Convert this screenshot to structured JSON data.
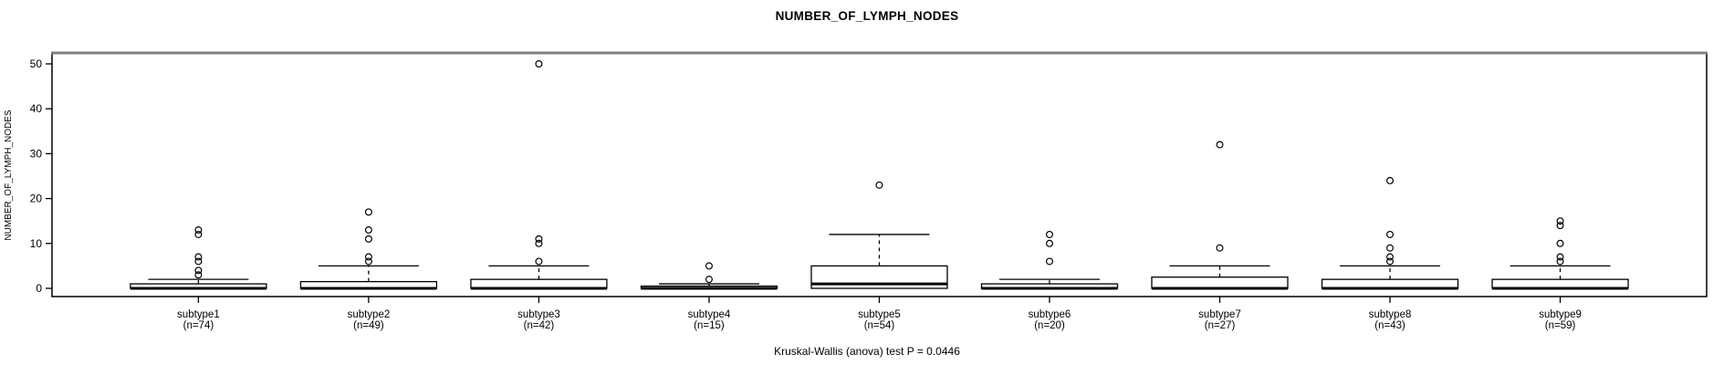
{
  "title": "NUMBER_OF_LYMPH_NODES",
  "y_axis_label": "NUMBER_OF_LYMPH_NODES",
  "caption": "Kruskal-Wallis (anova) test P = 0.0446",
  "chart_data": {
    "type": "boxplot",
    "title": "NUMBER_OF_LYMPH_NODES",
    "ylabel": "NUMBER_OF_LYMPH_NODES",
    "xlabel": "",
    "ylim": [
      0,
      50
    ],
    "yticks": [
      0,
      10,
      20,
      30,
      40,
      50
    ],
    "grid": false,
    "legend": false,
    "annotation": "Kruskal-Wallis (anova) test P = 0.0446",
    "categories": [
      "subtype1",
      "subtype2",
      "subtype3",
      "subtype4",
      "subtype5",
      "subtype6",
      "subtype7",
      "subtype8",
      "subtype9"
    ],
    "sample_size_labels": [
      "(n=74)",
      "(n=49)",
      "(n=42)",
      "(n=15)",
      "(n=54)",
      "(n=20)",
      "(n=27)",
      "(n=43)",
      "(n=59)"
    ],
    "series": [
      {
        "name": "subtype1",
        "n": 74,
        "q1": 0,
        "median": 0,
        "q3": 1,
        "whisker_low": 0,
        "whisker_high": 2,
        "outliers": [
          3,
          4,
          6,
          7,
          12,
          13
        ]
      },
      {
        "name": "subtype2",
        "n": 49,
        "q1": 0,
        "median": 0,
        "q3": 1.5,
        "whisker_low": 0,
        "whisker_high": 5,
        "outliers": [
          6,
          7,
          11,
          13,
          17
        ]
      },
      {
        "name": "subtype3",
        "n": 42,
        "q1": 0,
        "median": 0,
        "q3": 2,
        "whisker_low": 0,
        "whisker_high": 5,
        "outliers": [
          6,
          10,
          11,
          50
        ]
      },
      {
        "name": "subtype4",
        "n": 15,
        "q1": 0,
        "median": 0,
        "q3": 0.5,
        "whisker_low": 0,
        "whisker_high": 1,
        "outliers": [
          2,
          5
        ]
      },
      {
        "name": "subtype5",
        "n": 54,
        "q1": 0,
        "median": 1,
        "q3": 5,
        "whisker_low": 0,
        "whisker_high": 12,
        "outliers": [
          23
        ]
      },
      {
        "name": "subtype6",
        "n": 20,
        "q1": 0,
        "median": 0,
        "q3": 1,
        "whisker_low": 0,
        "whisker_high": 2,
        "outliers": [
          6,
          10,
          12
        ]
      },
      {
        "name": "subtype7",
        "n": 27,
        "q1": 0,
        "median": 0,
        "q3": 2.5,
        "whisker_low": 0,
        "whisker_high": 5,
        "outliers": [
          9,
          32
        ]
      },
      {
        "name": "subtype8",
        "n": 43,
        "q1": 0,
        "median": 0,
        "q3": 2,
        "whisker_low": 0,
        "whisker_high": 5,
        "outliers": [
          6,
          7,
          9,
          12,
          24
        ]
      },
      {
        "name": "subtype9",
        "n": 59,
        "q1": 0,
        "median": 0,
        "q3": 2,
        "whisker_low": 0,
        "whisker_high": 5,
        "outliers": [
          6,
          7,
          10,
          14,
          15
        ]
      }
    ],
    "colors": {
      "box_fill": "#ffffff",
      "stroke": "#000000",
      "frame_top": "#828282"
    }
  }
}
